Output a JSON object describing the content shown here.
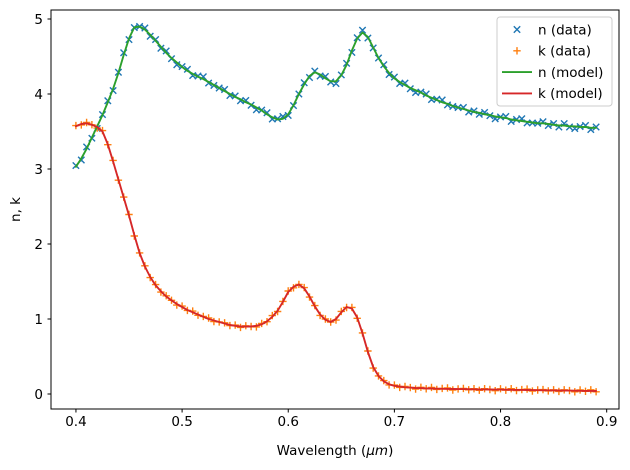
{
  "chart_data": {
    "type": "line",
    "title": "",
    "xlabel_prefix": "Wavelength (",
    "xlabel_unit": "μm",
    "xlabel_suffix": ")",
    "ylabel": "n, k",
    "xlim": [
      0.3765,
      0.9116
    ],
    "ylim": [
      -0.2,
      5.12
    ],
    "xticks": [
      "0.4",
      "0.5",
      "0.6",
      "0.7",
      "0.8",
      "0.9"
    ],
    "xtick_values": [
      0.4,
      0.5,
      0.6,
      0.7,
      0.8,
      0.9
    ],
    "yticks": [
      "0",
      "1",
      "2",
      "3",
      "4",
      "5"
    ],
    "ytick_values": [
      0,
      1,
      2,
      3,
      4,
      5
    ],
    "grid": false,
    "legend_position": "upper right",
    "x": [
      0.4,
      0.405,
      0.41,
      0.415,
      0.42,
      0.425,
      0.43,
      0.435,
      0.44,
      0.445,
      0.45,
      0.455,
      0.46,
      0.465,
      0.47,
      0.475,
      0.48,
      0.485,
      0.49,
      0.495,
      0.5,
      0.505,
      0.51,
      0.515,
      0.52,
      0.525,
      0.53,
      0.535,
      0.54,
      0.545,
      0.55,
      0.555,
      0.56,
      0.565,
      0.57,
      0.575,
      0.58,
      0.585,
      0.59,
      0.595,
      0.6,
      0.605,
      0.61,
      0.615,
      0.62,
      0.625,
      0.63,
      0.635,
      0.64,
      0.645,
      0.65,
      0.655,
      0.66,
      0.665,
      0.67,
      0.675,
      0.68,
      0.685,
      0.69,
      0.695,
      0.7,
      0.705,
      0.71,
      0.715,
      0.72,
      0.725,
      0.73,
      0.735,
      0.74,
      0.745,
      0.75,
      0.755,
      0.76,
      0.765,
      0.77,
      0.775,
      0.78,
      0.785,
      0.79,
      0.795,
      0.8,
      0.805,
      0.81,
      0.815,
      0.82,
      0.825,
      0.83,
      0.835,
      0.84,
      0.845,
      0.85,
      0.855,
      0.86,
      0.865,
      0.87,
      0.875,
      0.88,
      0.885,
      0.89
    ],
    "n_model": [
      3.03,
      3.14,
      3.27,
      3.42,
      3.57,
      3.72,
      3.89,
      4.07,
      4.28,
      4.52,
      4.74,
      4.89,
      4.9,
      4.86,
      4.79,
      4.71,
      4.63,
      4.55,
      4.48,
      4.42,
      4.36,
      4.31,
      4.27,
      4.23,
      4.2,
      4.16,
      4.12,
      4.08,
      4.04,
      4.0,
      3.96,
      3.93,
      3.89,
      3.86,
      3.82,
      3.78,
      3.73,
      3.69,
      3.66,
      3.67,
      3.73,
      3.85,
      4.0,
      4.13,
      4.24,
      4.29,
      4.26,
      4.21,
      4.17,
      4.17,
      4.25,
      4.39,
      4.58,
      4.74,
      4.82,
      4.76,
      4.62,
      4.48,
      4.37,
      4.28,
      4.21,
      4.16,
      4.12,
      4.08,
      4.05,
      4.02,
      3.98,
      3.95,
      3.92,
      3.89,
      3.87,
      3.84,
      3.82,
      3.8,
      3.78,
      3.76,
      3.75,
      3.73,
      3.72,
      3.7,
      3.69,
      3.68,
      3.66,
      3.65,
      3.64,
      3.63,
      3.62,
      3.61,
      3.61,
      3.6,
      3.59,
      3.58,
      3.58,
      3.57,
      3.57,
      3.56,
      3.56,
      3.55,
      3.55
    ],
    "k_model": [
      3.57,
      3.6,
      3.61,
      3.59,
      3.56,
      3.5,
      3.33,
      3.1,
      2.86,
      2.62,
      2.38,
      2.12,
      1.88,
      1.7,
      1.56,
      1.45,
      1.37,
      1.3,
      1.25,
      1.2,
      1.16,
      1.12,
      1.09,
      1.06,
      1.03,
      1.0,
      0.98,
      0.96,
      0.94,
      0.92,
      0.91,
      0.9,
      0.9,
      0.9,
      0.91,
      0.93,
      0.97,
      1.03,
      1.11,
      1.23,
      1.36,
      1.43,
      1.46,
      1.41,
      1.3,
      1.17,
      1.06,
      0.99,
      0.96,
      1.0,
      1.09,
      1.16,
      1.14,
      1.02,
      0.81,
      0.56,
      0.36,
      0.24,
      0.17,
      0.13,
      0.11,
      0.1,
      0.09,
      0.085,
      0.08,
      0.078,
      0.075,
      0.073,
      0.071,
      0.07,
      0.068,
      0.067,
      0.066,
      0.065,
      0.064,
      0.063,
      0.062,
      0.061,
      0.06,
      0.059,
      0.058,
      0.057,
      0.056,
      0.055,
      0.054,
      0.053,
      0.052,
      0.051,
      0.05,
      0.049,
      0.048,
      0.047,
      0.046,
      0.045,
      0.044,
      0.043,
      0.042,
      0.041,
      0.04
    ],
    "series": [
      {
        "name": "n (data)",
        "kind": "scatter",
        "marker": "x",
        "color": "#1f77b4",
        "values_ref": "n_model",
        "jitter": [
          0.015,
          -0.02,
          0.025,
          -0.01,
          -0.03,
          0.005,
          0.02,
          -0.025,
          0.01,
          0.03,
          -0.015,
          -0.005,
          0.0,
          0.02,
          -0.02
        ]
      },
      {
        "name": "k (data)",
        "kind": "scatter",
        "marker": "+",
        "color": "#ff7f0e",
        "values_ref": "k_model",
        "jitter": [
          0.008,
          -0.012,
          0.01,
          0.0,
          -0.015,
          0.012,
          -0.006,
          0.015,
          -0.01,
          0.005,
          0.013,
          -0.014,
          0.002,
          0.009,
          -0.008
        ]
      },
      {
        "name": "n (model)",
        "kind": "line",
        "color": "#2ca02c",
        "values_ref": "n_model",
        "jitter": [
          0
        ]
      },
      {
        "name": "k (model)",
        "kind": "line",
        "color": "#d62728",
        "values_ref": "k_model",
        "jitter": [
          0
        ]
      }
    ],
    "colors": {
      "n_data": "#1f77b4",
      "k_data": "#ff7f0e",
      "n_model": "#2ca02c",
      "k_model": "#d62728",
      "spine": "#000000",
      "legend_border": "#cccccc",
      "legend_background": "#ffffff"
    }
  }
}
